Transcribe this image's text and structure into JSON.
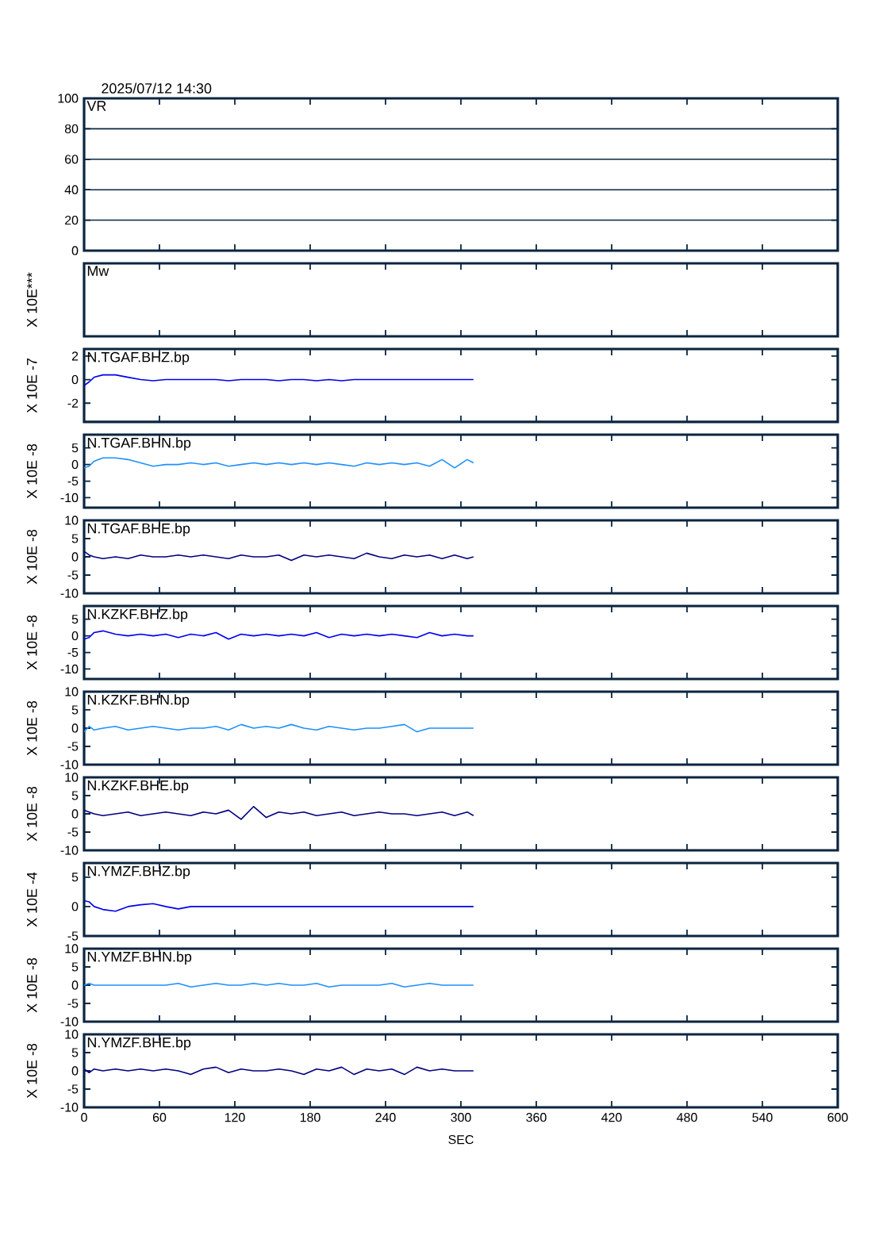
{
  "chart_data": [
    {
      "type": "line",
      "title": "VR",
      "annotations": [
        "2025/07/12  14:30"
      ],
      "xlim": [
        0,
        600
      ],
      "xticks": [
        0,
        60,
        120,
        180,
        240,
        300,
        360,
        420,
        480,
        540,
        600
      ],
      "ylim": [
        0,
        100
      ],
      "yticks": [
        0,
        20,
        40,
        60,
        80,
        100
      ],
      "grid": "y",
      "tick_labels": "y"
    },
    {
      "type": "other",
      "title": "Mw",
      "ylabel": "X 10E***"
    },
    {
      "type": "line",
      "title": "N.TGAF.BHZ.bp",
      "ylabel": "X 10E -7",
      "xlim": [
        0,
        600
      ],
      "xticks": [
        0,
        60,
        120,
        180,
        240,
        300,
        360,
        420,
        480,
        540,
        600
      ],
      "ylim": [
        -3.6,
        2.6
      ],
      "yticks": [
        -2,
        0,
        2
      ],
      "tick_labels": "y",
      "x": [
        0,
        4,
        8,
        15,
        25,
        35,
        45,
        55,
        65,
        75,
        85,
        95,
        105,
        115,
        125,
        135,
        145,
        155,
        165,
        175,
        185,
        195,
        205,
        215,
        225,
        235,
        245,
        255,
        265,
        275,
        285,
        295,
        305,
        310
      ],
      "series": [
        {
          "color": "#0000ee",
          "values": [
            -0.5,
            -0.2,
            0.2,
            0.4,
            0.4,
            0.2,
            0,
            -0.1,
            0,
            0,
            0,
            0,
            0,
            -0.1,
            0,
            0,
            0,
            -0.1,
            0,
            0,
            -0.1,
            0,
            -0.1,
            0,
            0,
            0,
            0,
            0,
            0,
            0,
            0,
            0,
            0,
            0
          ]
        }
      ]
    },
    {
      "type": "line",
      "title": "N.TGAF.BHN.bp",
      "ylabel": "X 10E -8",
      "xlim": [
        0,
        600
      ],
      "xticks": [
        0,
        60,
        120,
        180,
        240,
        300,
        360,
        420,
        480,
        540,
        600
      ],
      "ylim": [
        -13,
        9
      ],
      "yticks": [
        -10,
        -5,
        0,
        5
      ],
      "tick_labels": "y",
      "x": [
        0,
        4,
        8,
        15,
        25,
        35,
        45,
        55,
        65,
        75,
        85,
        95,
        105,
        115,
        125,
        135,
        145,
        155,
        165,
        175,
        185,
        195,
        205,
        215,
        225,
        235,
        245,
        255,
        265,
        275,
        285,
        295,
        305,
        310
      ],
      "series": [
        {
          "color": "#1e90ff",
          "values": [
            -1,
            -0.5,
            1,
            2,
            2,
            1.5,
            0.5,
            -0.5,
            0,
            0,
            0.5,
            0,
            0.5,
            -0.5,
            0,
            0.5,
            0,
            0.5,
            0,
            0.5,
            0,
            0.5,
            0,
            -0.5,
            0.5,
            0,
            0.5,
            0,
            0.5,
            -0.5,
            1.5,
            -1,
            1.5,
            0.5
          ]
        }
      ]
    },
    {
      "type": "line",
      "title": "N.TGAF.BHE.bp",
      "ylabel": "X 10E -8",
      "xlim": [
        0,
        600
      ],
      "xticks": [
        0,
        60,
        120,
        180,
        240,
        300,
        360,
        420,
        480,
        540,
        600
      ],
      "ylim": [
        -10,
        10
      ],
      "yticks": [
        -10,
        -5,
        0,
        5,
        10
      ],
      "tick_labels": "y",
      "x": [
        0,
        4,
        8,
        15,
        25,
        35,
        45,
        55,
        65,
        75,
        85,
        95,
        105,
        115,
        125,
        135,
        145,
        155,
        165,
        175,
        185,
        195,
        205,
        215,
        225,
        235,
        245,
        255,
        265,
        275,
        285,
        295,
        305,
        310
      ],
      "series": [
        {
          "color": "#000080",
          "values": [
            1.5,
            0.5,
            0,
            -0.5,
            0,
            -0.5,
            0.5,
            0,
            0,
            0.5,
            0,
            0.5,
            0,
            -0.5,
            0.5,
            0,
            0,
            0.5,
            -1,
            0.5,
            0,
            0.5,
            0,
            -0.5,
            1,
            0,
            -0.5,
            0.5,
            0,
            0.5,
            -0.5,
            0.5,
            -0.5,
            0
          ]
        }
      ]
    },
    {
      "type": "line",
      "title": "N.KZKF.BHZ.bp",
      "ylabel": "X 10E -8",
      "xlim": [
        0,
        600
      ],
      "xticks": [
        0,
        60,
        120,
        180,
        240,
        300,
        360,
        420,
        480,
        540,
        600
      ],
      "ylim": [
        -13,
        9
      ],
      "yticks": [
        -10,
        -5,
        0,
        5
      ],
      "tick_labels": "y",
      "x": [
        0,
        4,
        8,
        15,
        25,
        35,
        45,
        55,
        65,
        75,
        85,
        95,
        105,
        115,
        125,
        135,
        145,
        155,
        165,
        175,
        185,
        195,
        205,
        215,
        225,
        235,
        245,
        255,
        265,
        275,
        285,
        295,
        305,
        310
      ],
      "series": [
        {
          "color": "#0000ee",
          "values": [
            -1,
            -0.5,
            1,
            1.5,
            0.5,
            0,
            0.5,
            0,
            0.5,
            -0.5,
            0.5,
            0,
            1,
            -1,
            0.5,
            0,
            0.5,
            0,
            0.5,
            0,
            1,
            -0.5,
            0.5,
            0,
            0.5,
            0,
            0.5,
            0,
            -0.5,
            1,
            0,
            0.5,
            0,
            0
          ]
        }
      ]
    },
    {
      "type": "line",
      "title": "N.KZKF.BHN.bp",
      "ylabel": "X 10E -8",
      "xlim": [
        0,
        600
      ],
      "xticks": [
        0,
        60,
        120,
        180,
        240,
        300,
        360,
        420,
        480,
        540,
        600
      ],
      "ylim": [
        -10,
        10
      ],
      "yticks": [
        -10,
        -5,
        0,
        5,
        10
      ],
      "tick_labels": "y",
      "x": [
        0,
        4,
        8,
        15,
        25,
        35,
        45,
        55,
        65,
        75,
        85,
        95,
        105,
        115,
        125,
        135,
        145,
        155,
        165,
        175,
        185,
        195,
        205,
        215,
        225,
        235,
        245,
        255,
        265,
        275,
        285,
        295,
        305,
        310
      ],
      "series": [
        {
          "color": "#1e90ff",
          "values": [
            -1,
            0.5,
            -0.5,
            0,
            0.5,
            -0.5,
            0,
            0.5,
            0,
            -0.5,
            0,
            0,
            0.5,
            -0.5,
            1,
            0,
            0.5,
            0,
            1,
            0,
            -0.5,
            0.5,
            0,
            -0.5,
            0,
            0,
            0.5,
            1,
            -1,
            0,
            0,
            0,
            0,
            0
          ]
        }
      ]
    },
    {
      "type": "line",
      "title": "N.KZKF.BHE.bp",
      "ylabel": "X 10E -8",
      "xlim": [
        0,
        600
      ],
      "xticks": [
        0,
        60,
        120,
        180,
        240,
        300,
        360,
        420,
        480,
        540,
        600
      ],
      "ylim": [
        -10,
        10
      ],
      "yticks": [
        -10,
        -5,
        0,
        5,
        10
      ],
      "tick_labels": "y",
      "x": [
        0,
        4,
        8,
        15,
        25,
        35,
        45,
        55,
        65,
        75,
        85,
        95,
        105,
        115,
        125,
        135,
        145,
        155,
        165,
        175,
        185,
        195,
        205,
        215,
        225,
        235,
        245,
        255,
        265,
        275,
        285,
        295,
        305,
        310
      ],
      "series": [
        {
          "color": "#000080",
          "values": [
            1,
            0.5,
            0,
            -0.5,
            0,
            0.5,
            -0.5,
            0,
            0.5,
            0,
            -0.5,
            0.5,
            0,
            1,
            -1.5,
            2,
            -1,
            0.5,
            0,
            0.5,
            -0.5,
            0,
            0.5,
            -0.5,
            0,
            0.5,
            0,
            0,
            -0.5,
            0,
            0.5,
            -0.5,
            0.5,
            -0.5
          ]
        }
      ]
    },
    {
      "type": "line",
      "title": "N.YMZF.BHZ.bp",
      "ylabel": "X 10E -4",
      "xlim": [
        0,
        600
      ],
      "xticks": [
        0,
        60,
        120,
        180,
        240,
        300,
        360,
        420,
        480,
        540,
        600
      ],
      "ylim": [
        -5,
        7.4
      ],
      "yticks": [
        -5,
        0,
        5
      ],
      "tick_labels": "y",
      "x": [
        0,
        4,
        8,
        15,
        25,
        35,
        45,
        55,
        65,
        75,
        85,
        95,
        105,
        115,
        125,
        135,
        145,
        155,
        165,
        175,
        185,
        195,
        205,
        215,
        225,
        235,
        245,
        255,
        265,
        275,
        285,
        295,
        305,
        310
      ],
      "series": [
        {
          "color": "#0000ee",
          "values": [
            1,
            0.8,
            0,
            -0.5,
            -0.8,
            0,
            0.3,
            0.5,
            0,
            -0.4,
            0,
            0,
            0,
            0,
            0,
            0,
            0,
            0,
            0,
            0,
            0,
            0,
            0,
            0,
            0,
            0,
            0,
            0,
            0,
            0,
            0,
            0,
            0,
            0
          ]
        }
      ]
    },
    {
      "type": "line",
      "title": "N.YMZF.BHN.bp",
      "ylabel": "X 10E -8",
      "xlim": [
        0,
        600
      ],
      "xticks": [
        0,
        60,
        120,
        180,
        240,
        300,
        360,
        420,
        480,
        540,
        600
      ],
      "ylim": [
        -10,
        10
      ],
      "yticks": [
        -10,
        -5,
        0,
        5,
        10
      ],
      "tick_labels": "y",
      "x": [
        0,
        4,
        8,
        15,
        25,
        35,
        45,
        55,
        65,
        75,
        85,
        95,
        105,
        115,
        125,
        135,
        145,
        155,
        165,
        175,
        185,
        195,
        205,
        215,
        225,
        235,
        245,
        255,
        265,
        275,
        285,
        295,
        305,
        310
      ],
      "series": [
        {
          "color": "#1e90ff",
          "values": [
            0,
            0.5,
            0,
            0,
            0,
            0,
            0,
            0,
            0,
            0.5,
            -0.5,
            0,
            0.5,
            0,
            0,
            0.5,
            0,
            0.5,
            0,
            0,
            0.5,
            -0.5,
            0,
            0,
            0,
            0,
            0.5,
            -0.5,
            0,
            0.5,
            0,
            0,
            0,
            0
          ]
        }
      ]
    },
    {
      "type": "line",
      "title": "N.YMZF.BHE.bp",
      "ylabel": "X 10E -8",
      "xlabel": "SEC",
      "xlim": [
        0,
        600
      ],
      "xticks": [
        0,
        60,
        120,
        180,
        240,
        300,
        360,
        420,
        480,
        540,
        600
      ],
      "ylim": [
        -10,
        10
      ],
      "yticks": [
        -10,
        -5,
        0,
        5,
        10
      ],
      "x": [
        0,
        4,
        8,
        15,
        25,
        35,
        45,
        55,
        65,
        75,
        85,
        95,
        105,
        115,
        125,
        135,
        145,
        155,
        165,
        175,
        185,
        195,
        205,
        215,
        225,
        235,
        245,
        255,
        265,
        275,
        285,
        295,
        305,
        310
      ],
      "series": [
        {
          "color": "#000080",
          "values": [
            0.5,
            -0.5,
            0.5,
            0,
            0.5,
            0,
            0.5,
            0,
            0.5,
            0,
            -1,
            0.5,
            1,
            -0.5,
            0.5,
            0,
            0,
            0.5,
            0,
            -1,
            0.5,
            0,
            1,
            -1,
            0.5,
            0,
            0.5,
            -1,
            1,
            0,
            0.5,
            0,
            0,
            0
          ]
        }
      ]
    }
  ]
}
